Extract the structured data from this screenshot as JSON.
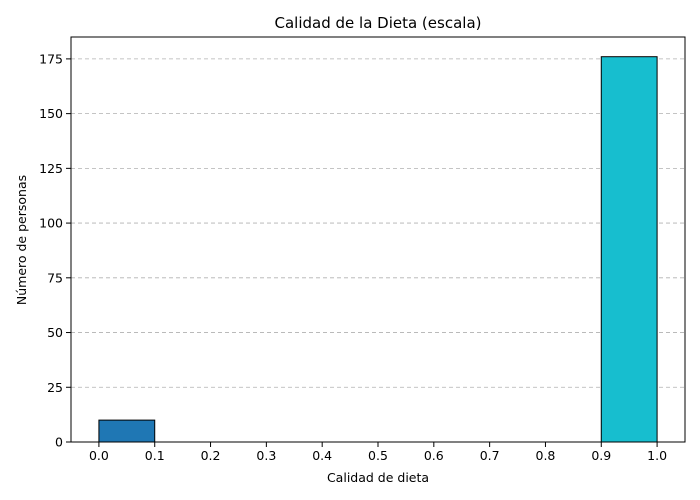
{
  "chart_data": {
    "type": "bar",
    "title": "Calidad de la Dieta (escala)",
    "xlabel": "Calidad de dieta",
    "ylabel": "Número de personas",
    "xlim": [
      -0.05,
      1.05
    ],
    "ylim": [
      0,
      185
    ],
    "xticks": [
      "0.0",
      "0.1",
      "0.2",
      "0.3",
      "0.4",
      "0.5",
      "0.6",
      "0.7",
      "0.8",
      "0.9",
      "1.0"
    ],
    "yticks": [
      0,
      25,
      50,
      75,
      100,
      125,
      150,
      175
    ],
    "grid": "y-dashed",
    "bins": [
      {
        "x0": 0.0,
        "x1": 0.1,
        "value": 10,
        "color": "#1f77b4"
      },
      {
        "x0": 0.1,
        "x1": 0.2,
        "value": 0,
        "color": "#1f77b4"
      },
      {
        "x0": 0.2,
        "x1": 0.3,
        "value": 0,
        "color": "#1f77b4"
      },
      {
        "x0": 0.3,
        "x1": 0.4,
        "value": 0,
        "color": "#1f77b4"
      },
      {
        "x0": 0.4,
        "x1": 0.5,
        "value": 0,
        "color": "#1f77b4"
      },
      {
        "x0": 0.5,
        "x1": 0.6,
        "value": 0,
        "color": "#1f77b4"
      },
      {
        "x0": 0.6,
        "x1": 0.7,
        "value": 0,
        "color": "#1f77b4"
      },
      {
        "x0": 0.7,
        "x1": 0.8,
        "value": 0,
        "color": "#1f77b4"
      },
      {
        "x0": 0.8,
        "x1": 0.9,
        "value": 0,
        "color": "#1f77b4"
      },
      {
        "x0": 0.9,
        "x1": 1.0,
        "value": 176,
        "color": "#17becf"
      }
    ]
  }
}
